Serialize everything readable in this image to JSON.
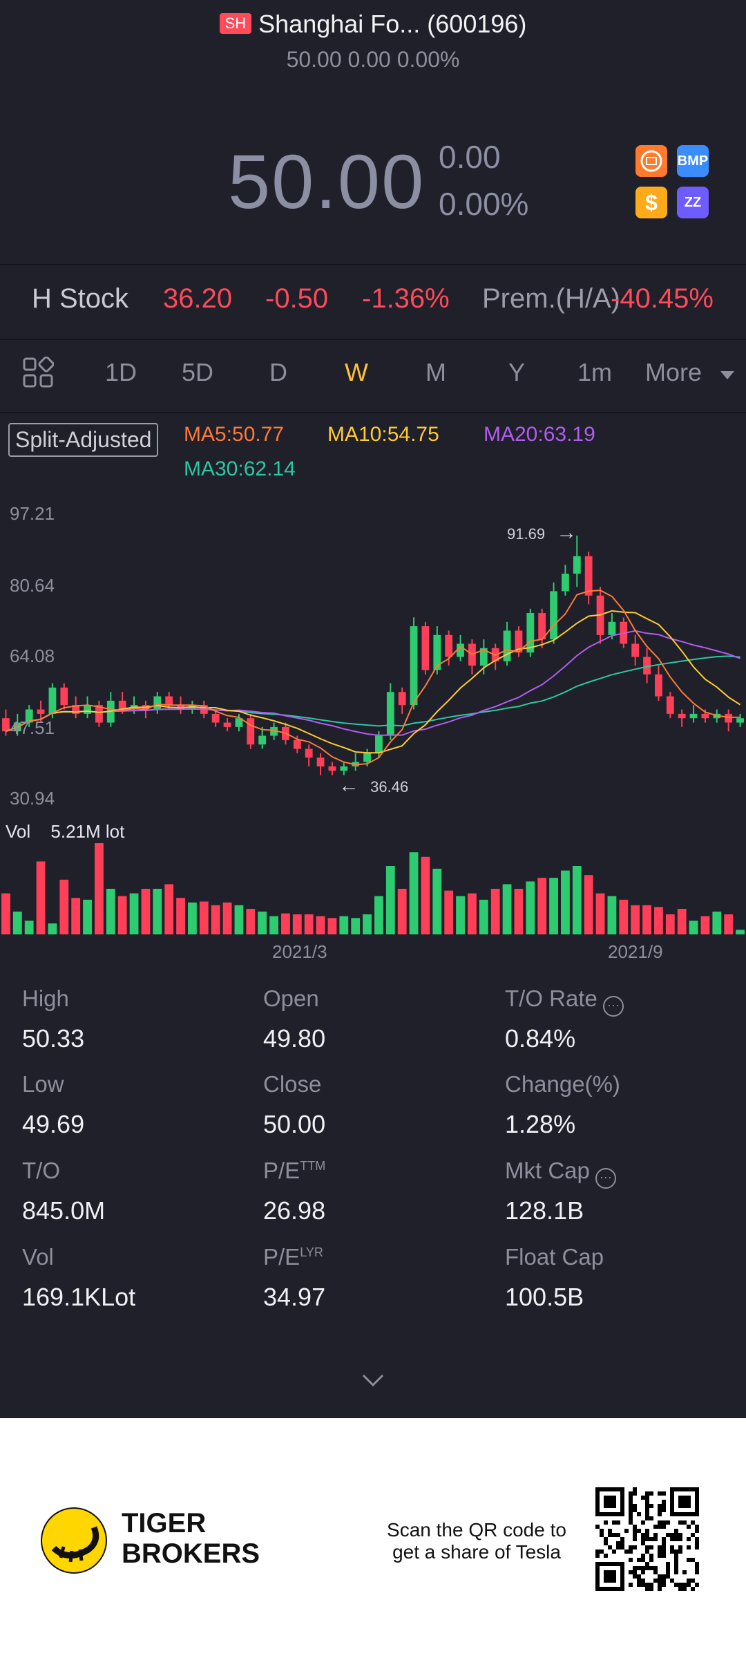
{
  "header": {
    "exchange_badge": "SH",
    "title": "Shanghai Fo... (600196)",
    "subtitle": "50.00  0.00  0.00%"
  },
  "quote": {
    "price": "50.00",
    "change": "0.00",
    "change_pct": "0.00%"
  },
  "icons": {
    "i1": "gold-coin-icon",
    "i2_label": "BMP",
    "i3_label": "$",
    "i4_label": "ZZ"
  },
  "h_stock": {
    "label": "H Stock",
    "price": "36.20",
    "change": "-0.50",
    "change_pct": "-1.36%",
    "prem_label": "Prem.(H/A)",
    "prem_value": "-40.45%"
  },
  "tabs": [
    "1D",
    "5D",
    "D",
    "W",
    "M",
    "Y",
    "1m",
    "More"
  ],
  "active_tab": "W",
  "chart_legend": {
    "split_adjusted": "Split-Adjusted",
    "ma5": "MA5:50.77",
    "ma10": "MA10:54.75",
    "ma20": "MA20:63.19",
    "ma30": "MA30:62.14"
  },
  "chart_data": {
    "type": "candlestick",
    "y_ticks": [
      "97.21",
      "80.64",
      "64.08",
      "47.51",
      "30.94"
    ],
    "ylim": [
      30.94,
      97.21
    ],
    "x_ticks": [
      "2021/3",
      "2021/9"
    ],
    "high_marker": "91.69",
    "low_marker": "36.46",
    "vol_label": "Vol",
    "vol_value": "5.21M lot",
    "candles": [
      {
        "o": 50,
        "c": 47,
        "h": 52,
        "l": 46
      },
      {
        "o": 47,
        "c": 49,
        "h": 51,
        "l": 46
      },
      {
        "o": 49,
        "c": 52,
        "h": 53,
        "l": 48
      },
      {
        "o": 52,
        "c": 51,
        "h": 54,
        "l": 49
      },
      {
        "o": 51,
        "c": 57,
        "h": 58,
        "l": 50
      },
      {
        "o": 57,
        "c": 53,
        "h": 58,
        "l": 52
      },
      {
        "o": 53,
        "c": 51,
        "h": 55,
        "l": 50
      },
      {
        "o": 51,
        "c": 53,
        "h": 55,
        "l": 50
      },
      {
        "o": 53,
        "c": 49,
        "h": 54,
        "l": 48
      },
      {
        "o": 49,
        "c": 54,
        "h": 56,
        "l": 48
      },
      {
        "o": 54,
        "c": 52,
        "h": 56,
        "l": 51
      },
      {
        "o": 52,
        "c": 53,
        "h": 55,
        "l": 51
      },
      {
        "o": 53,
        "c": 52,
        "h": 54,
        "l": 50
      },
      {
        "o": 52,
        "c": 55,
        "h": 56,
        "l": 51
      },
      {
        "o": 55,
        "c": 53,
        "h": 56,
        "l": 52
      },
      {
        "o": 53,
        "c": 52,
        "h": 55,
        "l": 51
      },
      {
        "o": 52,
        "c": 53,
        "h": 54,
        "l": 51
      },
      {
        "o": 53,
        "c": 51,
        "h": 54,
        "l": 50
      },
      {
        "o": 51,
        "c": 49,
        "h": 52,
        "l": 48
      },
      {
        "o": 49,
        "c": 48,
        "h": 50,
        "l": 47
      },
      {
        "o": 48,
        "c": 50,
        "h": 51,
        "l": 47
      },
      {
        "o": 50,
        "c": 44,
        "h": 51,
        "l": 43
      },
      {
        "o": 44,
        "c": 46,
        "h": 48,
        "l": 43
      },
      {
        "o": 46,
        "c": 48,
        "h": 49,
        "l": 45
      },
      {
        "o": 48,
        "c": 45,
        "h": 49,
        "l": 44
      },
      {
        "o": 45,
        "c": 43,
        "h": 46,
        "l": 42
      },
      {
        "o": 43,
        "c": 41,
        "h": 44,
        "l": 39
      },
      {
        "o": 41,
        "c": 39,
        "h": 42,
        "l": 37
      },
      {
        "o": 39,
        "c": 38,
        "h": 40,
        "l": 37
      },
      {
        "o": 38,
        "c": 39,
        "h": 40,
        "l": 37
      },
      {
        "o": 39,
        "c": 40,
        "h": 42,
        "l": 38
      },
      {
        "o": 40,
        "c": 42,
        "h": 43,
        "l": 39
      },
      {
        "o": 42,
        "c": 46,
        "h": 47,
        "l": 41
      },
      {
        "o": 46,
        "c": 56,
        "h": 58,
        "l": 45
      },
      {
        "o": 56,
        "c": 53,
        "h": 57,
        "l": 51
      },
      {
        "o": 53,
        "c": 71,
        "h": 73,
        "l": 52
      },
      {
        "o": 71,
        "c": 61,
        "h": 72,
        "l": 60
      },
      {
        "o": 61,
        "c": 69,
        "h": 71,
        "l": 60
      },
      {
        "o": 69,
        "c": 64,
        "h": 70,
        "l": 62
      },
      {
        "o": 64,
        "c": 67,
        "h": 69,
        "l": 63
      },
      {
        "o": 67,
        "c": 62,
        "h": 68,
        "l": 60
      },
      {
        "o": 62,
        "c": 66,
        "h": 68,
        "l": 60
      },
      {
        "o": 66,
        "c": 63,
        "h": 67,
        "l": 61
      },
      {
        "o": 63,
        "c": 70,
        "h": 72,
        "l": 62
      },
      {
        "o": 70,
        "c": 65,
        "h": 71,
        "l": 64
      },
      {
        "o": 65,
        "c": 74,
        "h": 75,
        "l": 64
      },
      {
        "o": 74,
        "c": 68,
        "h": 75,
        "l": 66
      },
      {
        "o": 68,
        "c": 79,
        "h": 81,
        "l": 67
      },
      {
        "o": 79,
        "c": 83,
        "h": 85,
        "l": 78
      },
      {
        "o": 83,
        "c": 87,
        "h": 91.69,
        "l": 80
      },
      {
        "o": 87,
        "c": 78,
        "h": 88,
        "l": 76
      },
      {
        "o": 78,
        "c": 69,
        "h": 80,
        "l": 67
      },
      {
        "o": 69,
        "c": 72,
        "h": 74,
        "l": 68
      },
      {
        "o": 72,
        "c": 67,
        "h": 73,
        "l": 66
      },
      {
        "o": 67,
        "c": 64,
        "h": 69,
        "l": 62
      },
      {
        "o": 64,
        "c": 60,
        "h": 66,
        "l": 58
      },
      {
        "o": 60,
        "c": 55,
        "h": 62,
        "l": 54
      },
      {
        "o": 55,
        "c": 51,
        "h": 56,
        "l": 50
      },
      {
        "o": 51,
        "c": 50,
        "h": 52,
        "l": 48
      },
      {
        "o": 50,
        "c": 51,
        "h": 53,
        "l": 49
      },
      {
        "o": 51,
        "c": 50,
        "h": 52,
        "l": 49
      },
      {
        "o": 50,
        "c": 51,
        "h": 52,
        "l": 49
      },
      {
        "o": 51,
        "c": 49,
        "h": 52,
        "l": 47
      },
      {
        "o": 49,
        "c": 50,
        "h": 51,
        "l": 48
      }
    ],
    "volume": [
      0.45,
      0.25,
      0.15,
      0.8,
      0.12,
      0.6,
      0.4,
      0.38,
      1.0,
      0.5,
      0.42,
      0.45,
      0.5,
      0.5,
      0.55,
      0.4,
      0.35,
      0.36,
      0.32,
      0.35,
      0.32,
      0.28,
      0.25,
      0.2,
      0.23,
      0.22,
      0.22,
      0.2,
      0.18,
      0.2,
      0.18,
      0.22,
      0.42,
      0.75,
      0.5,
      0.9,
      0.85,
      0.72,
      0.48,
      0.42,
      0.45,
      0.38,
      0.5,
      0.55,
      0.5,
      0.58,
      0.62,
      0.62,
      0.7,
      0.75,
      0.65,
      0.45,
      0.42,
      0.38,
      0.32,
      0.32,
      0.3,
      0.22,
      0.28,
      0.15,
      0.2,
      0.25,
      0.22,
      0.05
    ],
    "ma_colors": {
      "ma5": "#ff7a3a",
      "ma10": "#ffcb33",
      "ma20": "#b35cf2",
      "ma30": "#2cc7a2"
    }
  },
  "stats": [
    {
      "label": "High",
      "value": "50.33"
    },
    {
      "label": "Open",
      "value": "49.80"
    },
    {
      "label": "T/O Rate",
      "value": "0.84%"
    },
    {
      "label": "Low",
      "value": "49.69"
    },
    {
      "label": "Close",
      "value": "50.00"
    },
    {
      "label": "Change(%)",
      "value": "1.28%"
    },
    {
      "label": "T/O",
      "value": "845.0M"
    },
    {
      "label": "P/E",
      "sup": "TTM",
      "value": "26.98"
    },
    {
      "label": "Mkt Cap",
      "value": "128.1B"
    },
    {
      "label": "Vol",
      "value": "169.1KLot"
    },
    {
      "label": "P/E",
      "sup": "LYR",
      "value": "34.97"
    },
    {
      "label": "Float Cap",
      "value": "100.5B"
    }
  ],
  "footer": {
    "brand_line1": "TIGER",
    "brand_line2": "BROKERS",
    "promo_line1": "Scan the QR code to",
    "promo_line2": "get a share of Tesla"
  },
  "colors": {
    "up": "#2ecc71",
    "down": "#ff3f57",
    "bg": "#1f2029",
    "accent": "#ffc13a"
  }
}
